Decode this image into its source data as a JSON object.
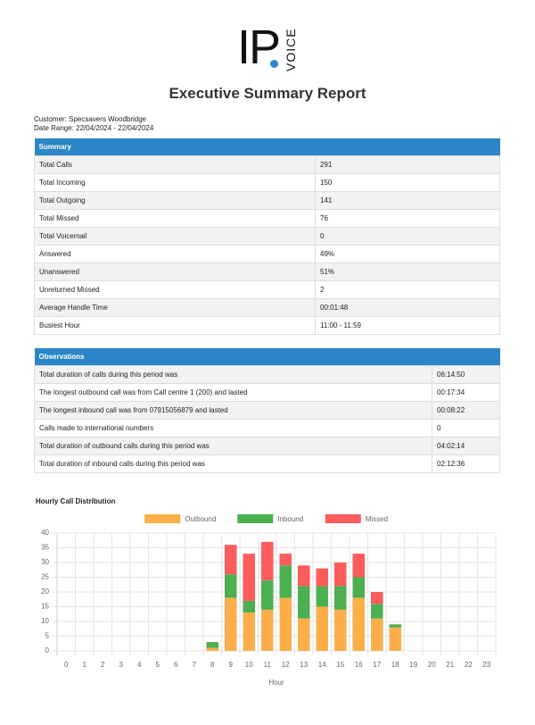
{
  "header": {
    "logo_main": "IP",
    "logo_sub": "VOICE",
    "title": "Executive Summary Report",
    "customer": "Customer: Specsavers Woodbridge",
    "date_range": "Date Range: 22/04/2024 - 22/04/2024"
  },
  "summary": {
    "title": "Summary",
    "rows": [
      [
        "Total Calls",
        "291"
      ],
      [
        "Total Incoming",
        "150"
      ],
      [
        "Total Outgoing",
        "141"
      ],
      [
        "Total Missed",
        "76"
      ],
      [
        "Total Voicemail",
        "0"
      ],
      [
        "Answered",
        "49%"
      ],
      [
        "Unanswered",
        "51%"
      ],
      [
        "Unreturned Missed",
        "2"
      ],
      [
        "Average Handle Time",
        "00:01:48"
      ],
      [
        "Busiest Hour",
        "11:00 - 11:59"
      ]
    ]
  },
  "observations": {
    "title": "Observations",
    "rows": [
      [
        "Total duration of calls during this period was",
        "06:14:50"
      ],
      [
        "The longest outbound call was from Call centre 1 (200) and lasted",
        "00:17:34"
      ],
      [
        "The longest inbound call was from 07915056879 and lasted",
        "00:08:22"
      ],
      [
        "Calls made to international numbers",
        "0"
      ],
      [
        "Total duration of outbound calls during this period was",
        "04:02:14"
      ],
      [
        "Total duration of inbound calls during this period was",
        "02:12:36"
      ]
    ]
  },
  "chart_data": {
    "type": "bar",
    "stacked": true,
    "title": "Hourly Call Distribution",
    "x_label": "Hour",
    "categories": [
      "0",
      "1",
      "2",
      "3",
      "4",
      "5",
      "6",
      "7",
      "8",
      "9",
      "10",
      "11",
      "12",
      "13",
      "14",
      "15",
      "16",
      "17",
      "18",
      "19",
      "20",
      "21",
      "22",
      "23"
    ],
    "series": [
      {
        "name": "Outbound",
        "color": "#fdae48",
        "values": [
          0,
          0,
          0,
          0,
          0,
          0,
          0,
          0,
          1,
          18,
          13,
          14,
          18,
          11,
          15,
          14,
          18,
          11,
          8,
          0,
          0,
          0,
          0,
          0
        ]
      },
      {
        "name": "Inbound",
        "color": "#4caf50",
        "values": [
          0,
          0,
          0,
          0,
          0,
          0,
          0,
          0,
          2,
          8,
          4,
          10,
          11,
          11,
          7,
          8,
          7,
          5,
          1,
          0,
          0,
          0,
          0,
          0
        ]
      },
      {
        "name": "Missed",
        "color": "#fd5c5c",
        "values": [
          0,
          0,
          0,
          0,
          0,
          0,
          0,
          0,
          0,
          10,
          16,
          13,
          4,
          7,
          6,
          8,
          8,
          4,
          0,
          0,
          0,
          0,
          0,
          0
        ]
      }
    ],
    "ylim": [
      0,
      40
    ],
    "yticks": [
      0,
      5,
      10,
      15,
      20,
      25,
      30,
      35,
      40
    ],
    "grid": true,
    "legend": "top"
  }
}
